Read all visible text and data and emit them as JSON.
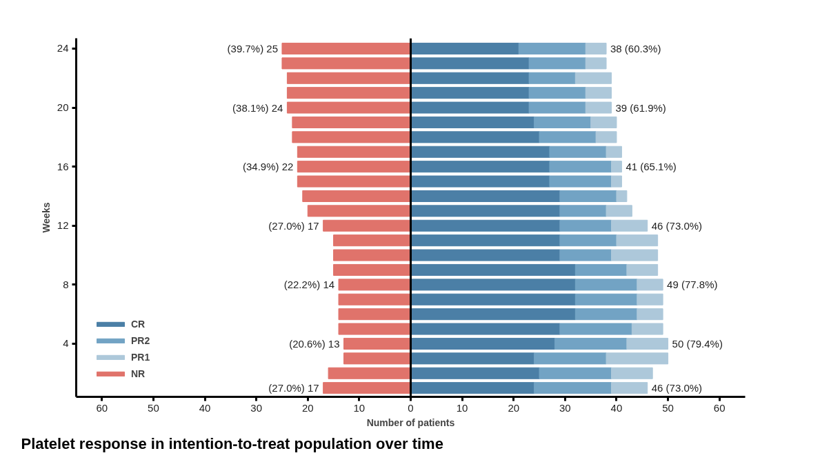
{
  "chart_data": {
    "type": "bar",
    "orientation": "horizontal",
    "stacked": true,
    "title": "Platelet response in intention-to-treat population over time",
    "xlabel": "Number of patients",
    "ylabel": "Weeks",
    "x": [
      1,
      2,
      3,
      4,
      5,
      6,
      7,
      8,
      9,
      10,
      11,
      12,
      13,
      14,
      15,
      16,
      17,
      18,
      19,
      20,
      21,
      22,
      23,
      24
    ],
    "series": [
      {
        "name": "CR",
        "color": "#4b7fa6",
        "values": [
          24,
          25,
          24,
          28,
          29,
          32,
          32,
          32,
          32,
          29,
          29,
          29,
          29,
          29,
          27,
          27,
          27,
          25,
          24,
          23,
          23,
          23,
          23,
          21
        ]
      },
      {
        "name": "PR2",
        "color": "#72a3c4",
        "values": [
          15,
          14,
          14,
          14,
          14,
          12,
          12,
          12,
          10,
          10,
          11,
          10,
          9,
          11,
          12,
          12,
          11,
          11,
          11,
          11,
          11,
          9,
          11,
          13
        ]
      },
      {
        "name": "PR1",
        "color": "#adc8da",
        "values": [
          7,
          8,
          12,
          8,
          6,
          5,
          5,
          5,
          6,
          9,
          8,
          7,
          5,
          2,
          2,
          2,
          3,
          4,
          5,
          5,
          5,
          7,
          4,
          4
        ]
      },
      {
        "name": "NR",
        "color": "#e0736b",
        "values": [
          -17,
          -16,
          -13,
          -13,
          -14,
          -14,
          -14,
          -14,
          -15,
          -15,
          -15,
          -17,
          -20,
          -21,
          -22,
          -22,
          -22,
          -23,
          -23,
          -24,
          -24,
          -24,
          -25,
          -25
        ]
      }
    ],
    "annotations": [
      {
        "text": "46 (73.0%)",
        "x": 46,
        "y": 1
      },
      {
        "text": "50 (79.4%)",
        "x": 50,
        "y": 4
      },
      {
        "text": "49 (77.8%)",
        "x": 49,
        "y": 8
      },
      {
        "text": "46 (73.0%)",
        "x": 46,
        "y": 12
      },
      {
        "text": "41 (65.1%)",
        "x": 41,
        "y": 16
      },
      {
        "text": "39 (61.9%)",
        "x": 39,
        "y": 20
      },
      {
        "text": "38 (60.3%)",
        "x": 38,
        "y": 24
      },
      {
        "text": "(27.0%) 17",
        "x": -17,
        "y": 1
      },
      {
        "text": "(20.6%) 13",
        "x": -13,
        "y": 4
      },
      {
        "text": "(22.2%) 14",
        "x": -14,
        "y": 8
      },
      {
        "text": "(27.0%) 17",
        "x": -17,
        "y": 12
      },
      {
        "text": "(34.9%) 22",
        "x": -22,
        "y": 16
      },
      {
        "text": "(38.1%) 24",
        "x": -24,
        "y": 20
      },
      {
        "text": "(39.7%) 25",
        "x": -25,
        "y": 24
      }
    ],
    "xlim": [
      -65,
      65
    ],
    "xticks": [
      {
        "value": -60,
        "label": "60"
      },
      {
        "value": -50,
        "label": "50"
      },
      {
        "value": -40,
        "label": "40"
      },
      {
        "value": -30,
        "label": "30"
      },
      {
        "value": -20,
        "label": "20"
      },
      {
        "value": -10,
        "label": "10"
      },
      0,
      10,
      20,
      30,
      40,
      50,
      60
    ],
    "ylim": [
      0.4,
      24.7
    ],
    "yticks": [
      4,
      8,
      12,
      16,
      20,
      24
    ],
    "ref_lines": [
      {
        "axis": "x",
        "value": 0,
        "color": "#000000"
      }
    ],
    "legend": "bottom left"
  }
}
